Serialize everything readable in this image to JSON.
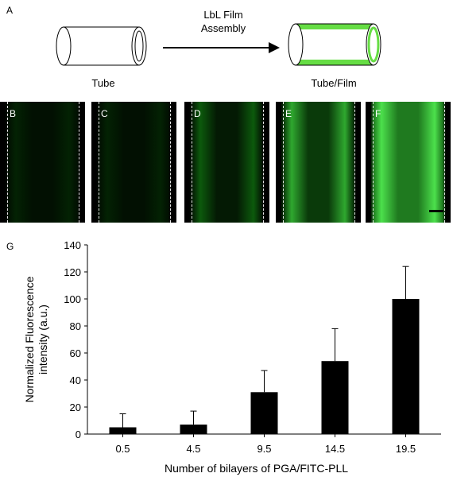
{
  "panel_a": {
    "letter": "A",
    "tube_label": "Tube",
    "arrow_label_line1": "LbL Film",
    "arrow_label_line2": "Assembly",
    "tube_film_label": "Tube/Film",
    "film_color": "#66dd44"
  },
  "micrographs": [
    {
      "letter": "B",
      "base_color": "#021002",
      "glow_color": "#032203",
      "fill_level": 0.03
    },
    {
      "letter": "C",
      "base_color": "#021002",
      "glow_color": "#032203",
      "fill_level": 0.04
    },
    {
      "letter": "D",
      "base_color": "#041a04",
      "glow_color": "#0c5a0c",
      "fill_level": 0.2
    },
    {
      "letter": "E",
      "base_color": "#0a3a0a",
      "glow_color": "#2fa82f",
      "fill_level": 0.45
    },
    {
      "letter": "F",
      "base_color": "#1f7a1f",
      "glow_color": "#4ce04c",
      "fill_level": 0.85
    }
  ],
  "chart_data": {
    "type": "bar",
    "panel_letter": "G",
    "categories": [
      "0.5",
      "4.5",
      "9.5",
      "14.5",
      "19.5"
    ],
    "values": [
      5,
      7,
      31,
      54,
      100
    ],
    "error_upper": [
      15,
      17,
      47,
      78,
      124
    ],
    "ylim": [
      0,
      140
    ],
    "yticks": [
      "0",
      "20",
      "40",
      "60",
      "80",
      "100",
      "120",
      "140"
    ],
    "ylabel_line1": "Normalized Fluorescence",
    "ylabel_line2": "intensity (a.u.)",
    "xlabel": "Number of bilayers of PGA/FITC-PLL",
    "bar_color": "#000000",
    "grid": false
  }
}
